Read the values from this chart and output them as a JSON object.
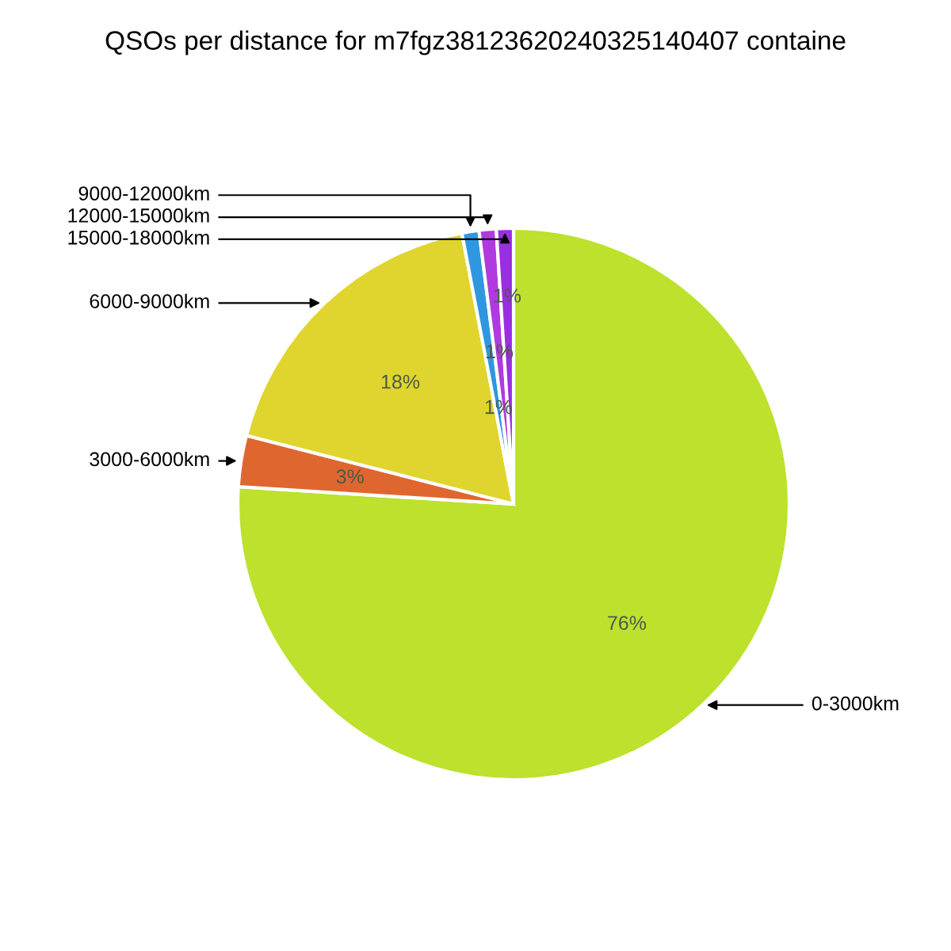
{
  "chart_data": {
    "type": "pie",
    "title": "QSOs per distance for m7fgz38123620240325140407 containe",
    "categories": [
      "0-3000km",
      "3000-6000km",
      "6000-9000km",
      "9000-12000km",
      "12000-15000km",
      "15000-18000km"
    ],
    "values": [
      76,
      3,
      18,
      1,
      1,
      1
    ],
    "colors": [
      "#bde12d",
      "#e06630",
      "#dfd52e",
      "#2f97e0",
      "#b03ae0",
      "#9a2ee0"
    ],
    "value_labels": [
      "76%",
      "3%",
      "18%",
      "1%",
      "1%",
      "1%"
    ]
  }
}
